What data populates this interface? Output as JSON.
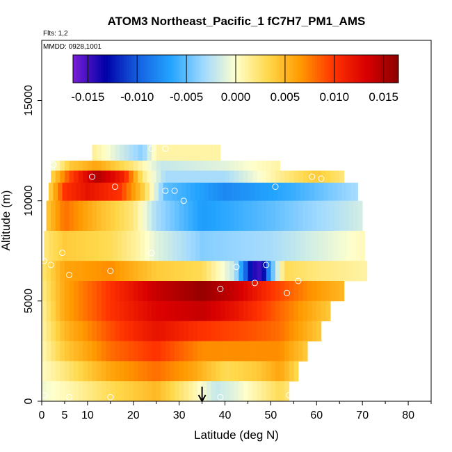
{
  "chart_data": {
    "type": "heatmap",
    "title": "ATOM3 Northeast_Pacific_1 fC7H7_PM1_AMS",
    "annotations": [
      "Flts: 1,2",
      "MMDD: 0928,1001"
    ],
    "xlabel": "Latitude (deg N)",
    "ylabel": "Altitude (m)",
    "xlim": [
      0,
      85
    ],
    "ylim": [
      0,
      18000
    ],
    "x_ticks": [
      0,
      5,
      10,
      20,
      30,
      40,
      50,
      60,
      70,
      80
    ],
    "y_ticks": [
      0,
      5000,
      10000,
      15000
    ],
    "colorbar": {
      "min": -0.0165,
      "max": 0.0165,
      "tick_values": [
        -0.015,
        -0.01,
        -0.005,
        0.0,
        0.005,
        0.01,
        0.015
      ],
      "tick_labels": [
        "-0.015",
        "-0.010",
        "-0.005",
        "0.000",
        "0.005",
        "0.010",
        "0.015"
      ],
      "colors": [
        "#7a1fd6",
        "#0000a8",
        "#1560e0",
        "#22a4ff",
        "#9fd9ff",
        "#ffffcc",
        "#ffd84a",
        "#ff9900",
        "#ff3300",
        "#d90000",
        "#8b0000"
      ]
    },
    "marker_latitude": 35,
    "bands": [
      {
        "alt": [
          12000,
          12800
        ],
        "lat": [
          11,
          39
        ],
        "cells": [
          [
            11,
            0.0015
          ],
          [
            22,
            -0.004
          ],
          [
            25,
            0.001
          ],
          [
            39,
            0.001
          ]
        ]
      },
      {
        "alt": [
          11500,
          12000
        ],
        "lat": [
          2,
          52
        ],
        "cells": [
          [
            2,
            -0.001
          ],
          [
            6,
            0.004
          ],
          [
            12,
            0.006
          ],
          [
            20,
            0.002
          ],
          [
            26,
            -0.002
          ],
          [
            40,
            -0.001
          ],
          [
            52,
            0.001
          ]
        ]
      },
      {
        "alt": [
          10900,
          11500
        ],
        "lat": [
          2,
          66
        ],
        "cells": [
          [
            2,
            0.003
          ],
          [
            6,
            0.009
          ],
          [
            12,
            0.015
          ],
          [
            18,
            0.011
          ],
          [
            22,
            0.002
          ],
          [
            27,
            -0.003
          ],
          [
            40,
            -0.003
          ],
          [
            52,
            0.0015
          ],
          [
            60,
            0.004
          ],
          [
            66,
            0.002
          ]
        ]
      },
      {
        "alt": [
          10000,
          10900
        ],
        "lat": [
          1.5,
          69
        ],
        "cells": [
          [
            1.5,
            0.003
          ],
          [
            5,
            0.01
          ],
          [
            10,
            0.012
          ],
          [
            17,
            0.01
          ],
          [
            22,
            0.004
          ],
          [
            27,
            -0.005
          ],
          [
            40,
            -0.008
          ],
          [
            55,
            -0.006
          ],
          [
            69,
            -0.003
          ]
        ]
      },
      {
        "alt": [
          8500,
          10000
        ],
        "lat": [
          1,
          70
        ],
        "cells": [
          [
            1,
            0.004
          ],
          [
            5,
            0.008
          ],
          [
            12,
            0.005
          ],
          [
            20,
            0.002
          ],
          [
            25,
            -0.003
          ],
          [
            35,
            -0.007
          ],
          [
            50,
            -0.005
          ],
          [
            62,
            -0.003
          ],
          [
            70,
            -0.0015
          ]
        ]
      },
      {
        "alt": [
          7000,
          8500
        ],
        "lat": [
          0.5,
          70.5
        ],
        "cells": [
          [
            0.5,
            0.002
          ],
          [
            5,
            0.004
          ],
          [
            15,
            0.003
          ],
          [
            21,
            0.001
          ],
          [
            25,
            -0.001
          ],
          [
            35,
            -0.004
          ],
          [
            50,
            -0.003
          ],
          [
            62,
            -0.001
          ],
          [
            70.5,
            0.0005
          ]
        ]
      },
      {
        "alt": [
          6000,
          7000
        ],
        "lat": [
          0,
          71
        ],
        "cells": [
          [
            0,
            0.002
          ],
          [
            5,
            0.006
          ],
          [
            15,
            0.007
          ],
          [
            25,
            0.004
          ],
          [
            35,
            0.003
          ],
          [
            42,
            -0.002
          ],
          [
            46,
            -0.014
          ],
          [
            48,
            -0.015
          ],
          [
            50,
            -0.006
          ],
          [
            53,
            0.003
          ],
          [
            60,
            0.002
          ],
          [
            71,
            0.001
          ]
        ]
      },
      {
        "alt": [
          5000,
          6000
        ],
        "lat": [
          0,
          66
        ],
        "cells": [
          [
            0,
            0.0015
          ],
          [
            5,
            0.006
          ],
          [
            15,
            0.01
          ],
          [
            25,
            0.014
          ],
          [
            35,
            0.016
          ],
          [
            42,
            0.014
          ],
          [
            50,
            0.01
          ],
          [
            58,
            0.007
          ],
          [
            66,
            0.005
          ]
        ]
      },
      {
        "alt": [
          4000,
          5000
        ],
        "lat": [
          0,
          63
        ],
        "cells": [
          [
            0,
            0.001
          ],
          [
            5,
            0.006
          ],
          [
            15,
            0.01
          ],
          [
            25,
            0.013
          ],
          [
            35,
            0.014
          ],
          [
            42,
            0.012
          ],
          [
            50,
            0.009
          ],
          [
            58,
            0.006
          ],
          [
            63,
            0.004
          ]
        ]
      },
      {
        "alt": [
          3000,
          4000
        ],
        "lat": [
          0,
          61
        ],
        "cells": [
          [
            0,
            0.0008
          ],
          [
            5,
            0.005
          ],
          [
            15,
            0.009
          ],
          [
            25,
            0.012
          ],
          [
            35,
            0.01
          ],
          [
            45,
            0.009
          ],
          [
            52,
            0.008
          ],
          [
            61,
            0.004
          ]
        ]
      },
      {
        "alt": [
          2000,
          3000
        ],
        "lat": [
          0,
          58
        ],
        "cells": [
          [
            0,
            0.0005
          ],
          [
            5,
            0.004
          ],
          [
            15,
            0.008
          ],
          [
            25,
            0.01
          ],
          [
            35,
            0.007
          ],
          [
            45,
            0.007
          ],
          [
            52,
            0.007
          ],
          [
            58,
            0.004
          ]
        ]
      },
      {
        "alt": [
          1000,
          2000
        ],
        "lat": [
          0,
          56
        ],
        "cells": [
          [
            0,
            0.0002
          ],
          [
            5,
            0.002
          ],
          [
            15,
            0.006
          ],
          [
            25,
            0.008
          ],
          [
            33,
            0.006
          ],
          [
            40,
            0.003
          ],
          [
            47,
            0.004
          ],
          [
            52,
            0.006
          ],
          [
            56,
            0.003
          ]
        ]
      },
      {
        "alt": [
          0,
          1000
        ],
        "lat": [
          0,
          54
        ],
        "cells": [
          [
            0,
            -0.0005
          ],
          [
            5,
            0.0005
          ],
          [
            15,
            0.003
          ],
          [
            25,
            0.005
          ],
          [
            33,
            0.001
          ],
          [
            38,
            -0.002
          ],
          [
            42,
            -0.001
          ],
          [
            47,
            0.001
          ],
          [
            52,
            0.003
          ],
          [
            54,
            0.002
          ]
        ]
      }
    ],
    "points": [
      [
        11,
        11200
      ],
      [
        16,
        10700
      ],
      [
        27,
        10500
      ],
      [
        29,
        10500
      ],
      [
        31,
        10000
      ],
      [
        51,
        10700
      ],
      [
        59,
        11200
      ],
      [
        61,
        11100
      ],
      [
        24,
        12600
      ],
      [
        27,
        12600
      ],
      [
        2.5,
        11800
      ],
      [
        24,
        7400
      ],
      [
        4.5,
        7400
      ],
      [
        15,
        6500
      ],
      [
        6,
        6300
      ],
      [
        2,
        6800
      ],
      [
        0.5,
        7000
      ],
      [
        42.5,
        6700
      ],
      [
        49,
        6800
      ],
      [
        39,
        5600
      ],
      [
        46.5,
        5900
      ],
      [
        53.5,
        5400
      ],
      [
        56,
        6000
      ],
      [
        6,
        200
      ],
      [
        15,
        200
      ],
      [
        39,
        200
      ],
      [
        54,
        300
      ],
      [
        0.5,
        300
      ]
    ]
  }
}
